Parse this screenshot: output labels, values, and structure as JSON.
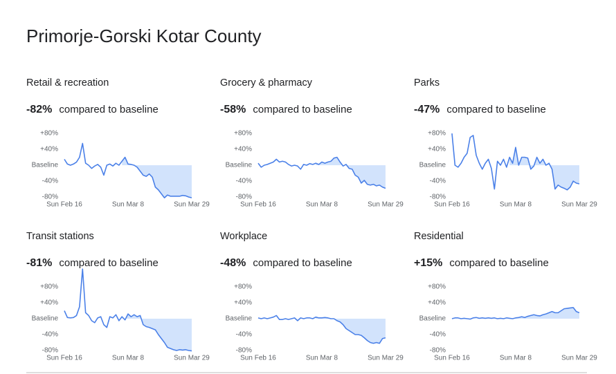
{
  "title": "Primorje-Gorski Kotar County",
  "chart_data": [
    {
      "type": "line",
      "title": "Retail & recreation",
      "change": "-82%",
      "change_text": "compared to baseline",
      "color": "#4a80e8",
      "categories": [
        "Sun Feb 16",
        null,
        null,
        null,
        null,
        null,
        null,
        null,
        null,
        null,
        null,
        null,
        null,
        null,
        null,
        null,
        null,
        null,
        null,
        null,
        null,
        "Sun Mar 8",
        null,
        null,
        null,
        null,
        null,
        null,
        null,
        null,
        null,
        null,
        null,
        null,
        null,
        null,
        null,
        null,
        null,
        null,
        null,
        null,
        "Sun Mar 29"
      ],
      "values": [
        15,
        3,
        0,
        3,
        8,
        20,
        55,
        5,
        0,
        -8,
        -2,
        2,
        -5,
        -25,
        0,
        3,
        -2,
        5,
        0,
        10,
        20,
        3,
        2,
        0,
        -5,
        -15,
        -25,
        -28,
        -22,
        -30,
        -55,
        -62,
        -72,
        -82,
        -75,
        -78,
        -78,
        -78,
        -78,
        -76,
        -77,
        -80,
        -82
      ],
      "ylim": [
        -80,
        80
      ],
      "yticks": [
        {
          "value": 80,
          "label": "+80%"
        },
        {
          "value": 40,
          "label": "+40%"
        },
        {
          "value": 0,
          "label": "Baseline"
        },
        {
          "value": -40,
          "label": "-40%"
        },
        {
          "value": -80,
          "label": "-80%"
        }
      ]
    },
    {
      "type": "line",
      "title": "Grocery & pharmacy",
      "change": "-58%",
      "change_text": "compared to baseline",
      "color": "#4a80e8",
      "categories": [
        "Sun Feb 16",
        null,
        null,
        null,
        null,
        null,
        null,
        null,
        null,
        null,
        null,
        null,
        null,
        null,
        null,
        null,
        null,
        null,
        null,
        null,
        null,
        "Sun Mar 8",
        null,
        null,
        null,
        null,
        null,
        null,
        null,
        null,
        null,
        null,
        null,
        null,
        null,
        null,
        null,
        null,
        null,
        null,
        null,
        null,
        "Sun Mar 29"
      ],
      "values": [
        5,
        -5,
        0,
        2,
        5,
        8,
        15,
        8,
        10,
        8,
        2,
        -2,
        0,
        -2,
        -10,
        2,
        0,
        4,
        2,
        5,
        2,
        8,
        5,
        8,
        10,
        18,
        20,
        8,
        -2,
        2,
        -8,
        -10,
        -25,
        -30,
        -45,
        -38,
        -48,
        -50,
        -48,
        -52,
        -50,
        -55,
        -58
      ],
      "ylim": [
        -80,
        80
      ],
      "yticks": [
        {
          "value": 80,
          "label": "+80%"
        },
        {
          "value": 40,
          "label": "+40%"
        },
        {
          "value": 0,
          "label": "Baseline"
        },
        {
          "value": -40,
          "label": "-40%"
        },
        {
          "value": -80,
          "label": "-80%"
        }
      ]
    },
    {
      "type": "line",
      "title": "Parks",
      "change": "-47%",
      "change_text": "compared to baseline",
      "color": "#4a80e8",
      "categories": [
        "Sun Feb 16",
        null,
        null,
        null,
        null,
        null,
        null,
        null,
        null,
        null,
        null,
        null,
        null,
        null,
        null,
        null,
        null,
        null,
        null,
        null,
        null,
        "Sun Mar 8",
        null,
        null,
        null,
        null,
        null,
        null,
        null,
        null,
        null,
        null,
        null,
        null,
        null,
        null,
        null,
        null,
        null,
        null,
        null,
        null,
        "Sun Mar 29"
      ],
      "values": [
        80,
        0,
        -5,
        5,
        20,
        30,
        70,
        75,
        25,
        5,
        -10,
        5,
        15,
        -8,
        -60,
        10,
        0,
        15,
        -5,
        20,
        5,
        45,
        0,
        20,
        20,
        18,
        -10,
        -2,
        20,
        5,
        15,
        0,
        5,
        -10,
        -60,
        -50,
        -55,
        -58,
        -62,
        -55,
        -40,
        -45,
        -47
      ],
      "ylim": [
        -80,
        80
      ],
      "yticks": [
        {
          "value": 80,
          "label": "+80%"
        },
        {
          "value": 40,
          "label": "+40%"
        },
        {
          "value": 0,
          "label": "Baseline"
        },
        {
          "value": -40,
          "label": "-40%"
        },
        {
          "value": -80,
          "label": "-80%"
        }
      ]
    },
    {
      "type": "line",
      "title": "Transit stations",
      "change": "-81%",
      "change_text": "compared to baseline",
      "color": "#4a80e8",
      "categories": [
        "Sun Feb 16",
        null,
        null,
        null,
        null,
        null,
        null,
        null,
        null,
        null,
        null,
        null,
        null,
        null,
        null,
        null,
        null,
        null,
        null,
        null,
        null,
        "Sun Mar 8",
        null,
        null,
        null,
        null,
        null,
        null,
        null,
        null,
        null,
        null,
        null,
        null,
        null,
        null,
        null,
        null,
        null,
        null,
        null,
        null,
        "Sun Mar 29"
      ],
      "values": [
        20,
        3,
        2,
        3,
        8,
        30,
        125,
        15,
        8,
        -5,
        -10,
        2,
        5,
        -15,
        -22,
        5,
        2,
        10,
        -5,
        5,
        -3,
        12,
        5,
        10,
        5,
        8,
        -15,
        -20,
        -22,
        -25,
        -28,
        -40,
        -50,
        -60,
        -72,
        -75,
        -78,
        -80,
        -78,
        -79,
        -78,
        -80,
        -81
      ],
      "ylim": [
        -80,
        80
      ],
      "yticks": [
        {
          "value": 80,
          "label": "+80%"
        },
        {
          "value": 40,
          "label": "+40%"
        },
        {
          "value": 0,
          "label": "Baseline"
        },
        {
          "value": -40,
          "label": "-40%"
        },
        {
          "value": -80,
          "label": "-80%"
        }
      ]
    },
    {
      "type": "line",
      "title": "Workplace",
      "change": "-48%",
      "change_text": "compared to baseline",
      "color": "#4a80e8",
      "categories": [
        "Sun Feb 16",
        null,
        null,
        null,
        null,
        null,
        null,
        null,
        null,
        null,
        null,
        null,
        null,
        null,
        null,
        null,
        null,
        null,
        null,
        null,
        null,
        "Sun Mar 8",
        null,
        null,
        null,
        null,
        null,
        null,
        null,
        null,
        null,
        null,
        null,
        null,
        null,
        null,
        null,
        null,
        null,
        null,
        null,
        null,
        "Sun Mar 29"
      ],
      "values": [
        2,
        0,
        2,
        0,
        2,
        4,
        8,
        -2,
        -2,
        0,
        -2,
        0,
        2,
        -5,
        2,
        0,
        2,
        2,
        0,
        4,
        2,
        2,
        3,
        2,
        0,
        0,
        -5,
        -8,
        -15,
        -25,
        -30,
        -35,
        -40,
        -40,
        -42,
        -48,
        -55,
        -60,
        -62,
        -60,
        -62,
        -50,
        -48
      ],
      "ylim": [
        -80,
        80
      ],
      "yticks": [
        {
          "value": 80,
          "label": "+80%"
        },
        {
          "value": 40,
          "label": "+40%"
        },
        {
          "value": 0,
          "label": "Baseline"
        },
        {
          "value": -40,
          "label": "-40%"
        },
        {
          "value": -80,
          "label": "-80%"
        }
      ]
    },
    {
      "type": "line",
      "title": "Residential",
      "change": "+15%",
      "change_text": "compared to baseline",
      "color": "#4a80e8",
      "categories": [
        "Sun Feb 16",
        null,
        null,
        null,
        null,
        null,
        null,
        null,
        null,
        null,
        null,
        null,
        null,
        null,
        null,
        null,
        null,
        null,
        null,
        null,
        null,
        "Sun Mar 8",
        null,
        null,
        null,
        null,
        null,
        null,
        null,
        null,
        null,
        null,
        null,
        null,
        null,
        null,
        null,
        null,
        null,
        null,
        null,
        null,
        "Sun Mar 29"
      ],
      "values": [
        0,
        2,
        2,
        0,
        1,
        0,
        -1,
        2,
        3,
        1,
        2,
        1,
        2,
        1,
        2,
        0,
        1,
        0,
        2,
        1,
        0,
        2,
        3,
        5,
        3,
        6,
        8,
        10,
        8,
        7,
        10,
        12,
        15,
        18,
        15,
        15,
        20,
        25,
        26,
        27,
        28,
        18,
        15
      ],
      "ylim": [
        -80,
        80
      ],
      "yticks": [
        {
          "value": 80,
          "label": "+80%"
        },
        {
          "value": 40,
          "label": "+40%"
        },
        {
          "value": 0,
          "label": "Baseline"
        },
        {
          "value": -40,
          "label": "-40%"
        },
        {
          "value": -80,
          "label": "-80%"
        }
      ]
    }
  ]
}
